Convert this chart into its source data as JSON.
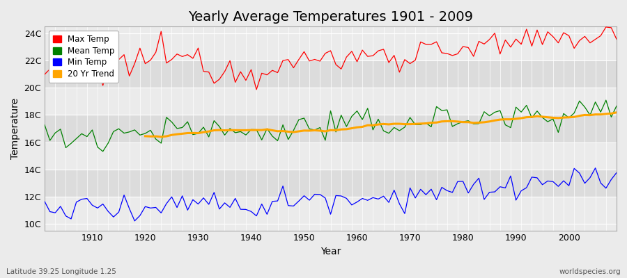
{
  "title": "Yearly Average Temperatures 1901 - 2009",
  "xlabel": "Year",
  "ylabel": "Temperature",
  "footnote_left": "Latitude 39.25 Longitude 1.25",
  "footnote_right": "worldspecies.org",
  "legend_entries": [
    "Max Temp",
    "Mean Temp",
    "Min Temp",
    "20 Yr Trend"
  ],
  "legend_colors": [
    "#ff0000",
    "#008000",
    "#0000ff",
    "#ffa500"
  ],
  "start_year": 1901,
  "end_year": 2009,
  "yticks": [
    10,
    12,
    14,
    16,
    18,
    20,
    22,
    24
  ],
  "ylim": [
    9.5,
    24.5
  ],
  "xlim": [
    1901,
    2009
  ],
  "bg_light": "#ebebeb",
  "bg_dark": "#dcdcdc",
  "grid_color": "#ffffff",
  "max_temp_color": "#ff0000",
  "mean_temp_color": "#008000",
  "min_temp_color": "#0000ff",
  "trend_color": "#ffa500",
  "max_temp_base": 21.1,
  "mean_temp_base": 16.4,
  "min_temp_base": 11.2,
  "title_fontsize": 14,
  "axis_fontsize": 9,
  "label_fontsize": 10
}
